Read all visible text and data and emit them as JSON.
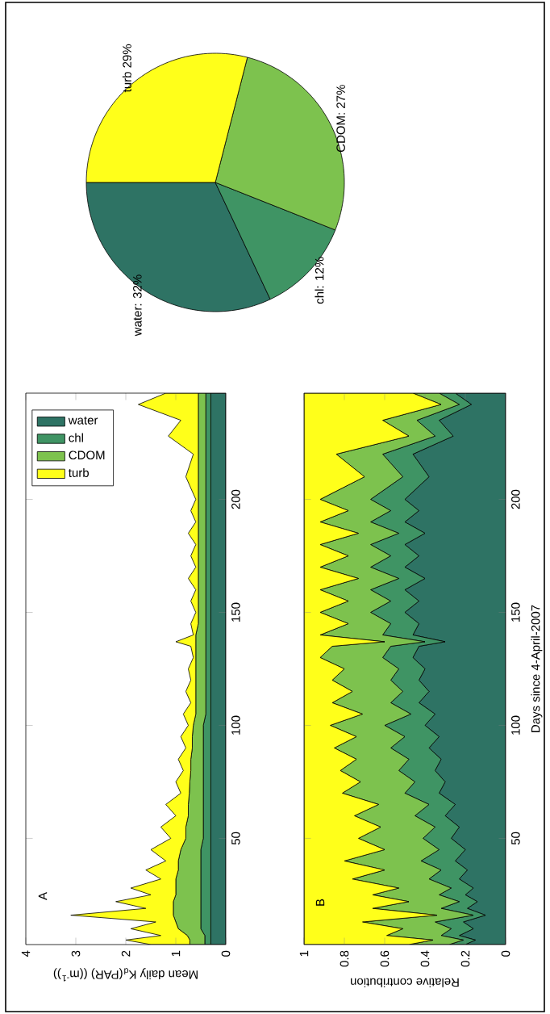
{
  "chart_data": [
    {
      "type": "area",
      "stacked": true,
      "orientation": "horizontal",
      "xlabel": "Mean daily K$_{d}$(PAR) ((m$^{-1}$))",
      "annotations": [
        "A"
      ],
      "legend": "top left",
      "xlim": [
        4,
        0
      ],
      "ylim": [
        3,
        247
      ],
      "xticks": [
        0,
        1,
        2,
        3,
        4
      ],
      "yticks": [
        50,
        100,
        150,
        200
      ],
      "x": [
        3,
        5,
        7,
        10,
        13,
        16,
        19,
        22,
        25,
        28,
        32,
        36,
        40,
        45,
        50,
        55,
        60,
        65,
        70,
        75,
        80,
        85,
        90,
        95,
        100,
        105,
        110,
        115,
        120,
        125,
        130,
        135,
        137,
        140,
        145,
        150,
        155,
        160,
        165,
        170,
        175,
        180,
        185,
        190,
        195,
        200,
        210,
        220,
        228,
        235,
        242,
        247
      ],
      "series": [
        {
          "name": "water",
          "color": "#2e7364",
          "values": [
            0.3,
            0.3,
            0.3,
            0.3,
            0.3,
            0.3,
            0.3,
            0.3,
            0.3,
            0.3,
            0.3,
            0.3,
            0.3,
            0.3,
            0.3,
            0.3,
            0.3,
            0.3,
            0.3,
            0.3,
            0.3,
            0.3,
            0.3,
            0.3,
            0.3,
            0.3,
            0.3,
            0.3,
            0.3,
            0.3,
            0.3,
            0.3,
            0.3,
            0.3,
            0.3,
            0.3,
            0.3,
            0.3,
            0.3,
            0.3,
            0.3,
            0.3,
            0.3,
            0.3,
            0.3,
            0.3,
            0.3,
            0.3,
            0.3,
            0.3,
            0.3,
            0.3
          ]
        },
        {
          "name": "chl",
          "color": "#3f9464",
          "values": [
            0.12,
            0.12,
            0.12,
            0.2,
            0.2,
            0.2,
            0.2,
            0.2,
            0.2,
            0.2,
            0.2,
            0.2,
            0.2,
            0.2,
            0.15,
            0.15,
            0.15,
            0.15,
            0.15,
            0.15,
            0.15,
            0.15,
            0.15,
            0.15,
            0.15,
            0.1,
            0.1,
            0.1,
            0.1,
            0.1,
            0.1,
            0.1,
            0.1,
            0.1,
            0.1,
            0.1,
            0.1,
            0.1,
            0.1,
            0.1,
            0.1,
            0.1,
            0.1,
            0.1,
            0.1,
            0.1,
            0.1,
            0.1,
            0.1,
            0.1,
            0.1,
            0.1
          ]
        },
        {
          "name": "CDOM",
          "color": "#7dc24e",
          "values": [
            0.3,
            0.3,
            0.35,
            0.45,
            0.5,
            0.55,
            0.55,
            0.55,
            0.5,
            0.5,
            0.5,
            0.45,
            0.45,
            0.4,
            0.35,
            0.35,
            0.3,
            0.3,
            0.28,
            0.27,
            0.25,
            0.25,
            0.22,
            0.22,
            0.2,
            0.2,
            0.2,
            0.2,
            0.2,
            0.2,
            0.2,
            0.2,
            0.2,
            0.2,
            0.15,
            0.15,
            0.15,
            0.15,
            0.15,
            0.15,
            0.15,
            0.15,
            0.15,
            0.15,
            0.15,
            0.15,
            0.15,
            0.15,
            0.15,
            0.15,
            0.15,
            0.15
          ]
        },
        {
          "name": "turb",
          "color": "#ffff1a",
          "values": [
            0.78,
            1.28,
            0.53,
            0.95,
            0.4,
            2.05,
            0.55,
            1.15,
            0.5,
            0.9,
            0.3,
            0.65,
            0.25,
            0.6,
            0.3,
            0.5,
            0.25,
            0.45,
            0.17,
            0.28,
            0.15,
            0.25,
            0.13,
            0.23,
            0.1,
            0.25,
            0.1,
            0.2,
            0.1,
            0.15,
            0.05,
            0.1,
            0.4,
            0.05,
            0.15,
            0.05,
            0.15,
            0.05,
            0.2,
            0.05,
            0.15,
            0.05,
            0.2,
            0.05,
            0.15,
            0.05,
            0.25,
            0.1,
            0.6,
            0.35,
            1.2,
            0.65
          ]
        }
      ]
    },
    {
      "type": "area",
      "stacked": true,
      "orientation": "horizontal",
      "xlabel": "Relative contribution",
      "ylabel": "Days since 4-April-2007",
      "annotations": [
        "B"
      ],
      "xlim": [
        1,
        0
      ],
      "ylim": [
        3,
        247
      ],
      "xticks": [
        0,
        0.2,
        0.4,
        0.6,
        0.8,
        1
      ],
      "yticks": [
        50,
        100,
        150,
        200
      ],
      "x": [
        3,
        5,
        7,
        10,
        13,
        16,
        19,
        22,
        25,
        28,
        32,
        36,
        40,
        45,
        50,
        55,
        60,
        65,
        70,
        75,
        80,
        85,
        90,
        95,
        100,
        105,
        110,
        115,
        120,
        125,
        130,
        135,
        137,
        140,
        145,
        150,
        155,
        160,
        165,
        170,
        175,
        180,
        185,
        190,
        195,
        200,
        210,
        220,
        228,
        235,
        242,
        247
      ],
      "series": [
        {
          "color": "#2e7364",
          "values": [
            0.2,
            0.15,
            0.23,
            0.16,
            0.21,
            0.1,
            0.19,
            0.14,
            0.2,
            0.16,
            0.23,
            0.19,
            0.25,
            0.2,
            0.27,
            0.23,
            0.3,
            0.25,
            0.33,
            0.3,
            0.35,
            0.32,
            0.38,
            0.33,
            0.4,
            0.35,
            0.43,
            0.38,
            0.43,
            0.4,
            0.46,
            0.43,
            0.3,
            0.46,
            0.43,
            0.5,
            0.43,
            0.5,
            0.4,
            0.5,
            0.43,
            0.5,
            0.4,
            0.5,
            0.43,
            0.5,
            0.38,
            0.46,
            0.26,
            0.33,
            0.17,
            0.25
          ]
        },
        {
          "color": "#3f9464",
          "values": [
            0.08,
            0.06,
            0.09,
            0.11,
            0.14,
            0.06,
            0.13,
            0.09,
            0.13,
            0.11,
            0.15,
            0.13,
            0.17,
            0.13,
            0.14,
            0.12,
            0.15,
            0.13,
            0.17,
            0.15,
            0.18,
            0.16,
            0.19,
            0.17,
            0.2,
            0.12,
            0.14,
            0.13,
            0.14,
            0.13,
            0.15,
            0.14,
            0.1,
            0.15,
            0.14,
            0.17,
            0.14,
            0.17,
            0.13,
            0.17,
            0.14,
            0.17,
            0.13,
            0.17,
            0.14,
            0.17,
            0.13,
            0.15,
            0.09,
            0.11,
            0.06,
            0.08
          ]
        },
        {
          "color": "#7dc24e",
          "values": [
            0.2,
            0.15,
            0.27,
            0.24,
            0.36,
            0.18,
            0.34,
            0.25,
            0.33,
            0.26,
            0.38,
            0.28,
            0.38,
            0.27,
            0.32,
            0.27,
            0.3,
            0.25,
            0.31,
            0.27,
            0.29,
            0.26,
            0.28,
            0.24,
            0.27,
            0.24,
            0.29,
            0.25,
            0.29,
            0.27,
            0.31,
            0.29,
            0.2,
            0.31,
            0.21,
            0.25,
            0.21,
            0.25,
            0.2,
            0.25,
            0.21,
            0.25,
            0.2,
            0.25,
            0.21,
            0.25,
            0.19,
            0.23,
            0.13,
            0.17,
            0.09,
            0.13
          ]
        },
        {
          "color": "#ffff1a",
          "values": [
            0.52,
            0.64,
            0.41,
            0.49,
            0.29,
            0.66,
            0.34,
            0.52,
            0.34,
            0.47,
            0.24,
            0.4,
            0.2,
            0.4,
            0.27,
            0.38,
            0.25,
            0.37,
            0.19,
            0.28,
            0.18,
            0.26,
            0.15,
            0.26,
            0.13,
            0.29,
            0.14,
            0.24,
            0.14,
            0.2,
            0.08,
            0.14,
            0.4,
            0.08,
            0.22,
            0.08,
            0.22,
            0.08,
            0.27,
            0.08,
            0.22,
            0.08,
            0.27,
            0.08,
            0.22,
            0.08,
            0.3,
            0.16,
            0.52,
            0.39,
            0.68,
            0.54
          ]
        }
      ]
    },
    {
      "type": "pie",
      "categories": [
        "water: 32%",
        "chl: 12%",
        "CDOM: 27%",
        "turb 29%"
      ],
      "values": [
        32,
        12,
        27,
        29
      ],
      "colors": [
        "#2e7364",
        "#3f9464",
        "#7dc24e",
        "#ffff1a"
      ]
    }
  ]
}
